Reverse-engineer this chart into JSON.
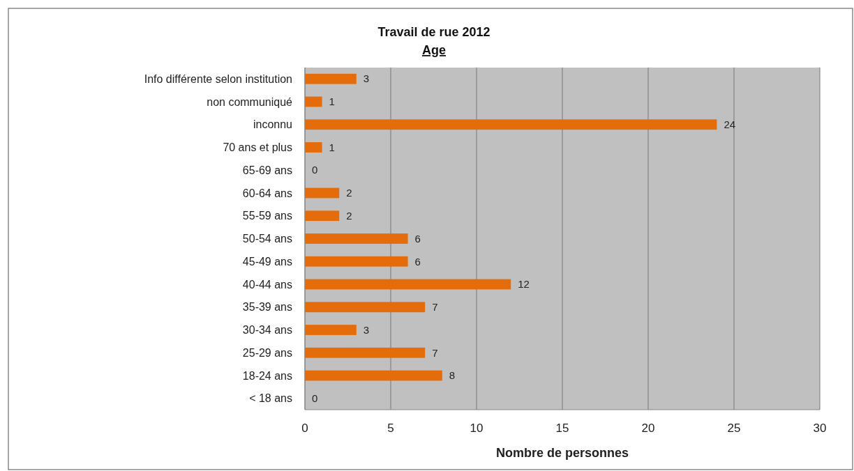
{
  "chart_data": {
    "type": "bar",
    "orientation": "horizontal",
    "title": "Travail de rue 2012",
    "subtitle": "Age",
    "xlabel": "Nombre de personnes",
    "categories": [
      "Info différente selon institution",
      "non communiqué",
      "inconnu",
      "70 ans et plus",
      "65-69 ans",
      "60-64 ans",
      "55-59 ans",
      "50-54 ans",
      "45-49 ans",
      "40-44 ans",
      "35-39 ans",
      "30-34 ans",
      "25-29 ans",
      "18-24 ans",
      "< 18 ans"
    ],
    "values": [
      3,
      1,
      24,
      1,
      0,
      2,
      2,
      6,
      6,
      12,
      7,
      3,
      7,
      8,
      0
    ],
    "color": "#e46c0a",
    "xlim": [
      0,
      30
    ],
    "xticks": [
      0,
      5,
      10,
      15,
      20,
      25,
      30
    ],
    "grid": "x",
    "data_labels": true
  }
}
